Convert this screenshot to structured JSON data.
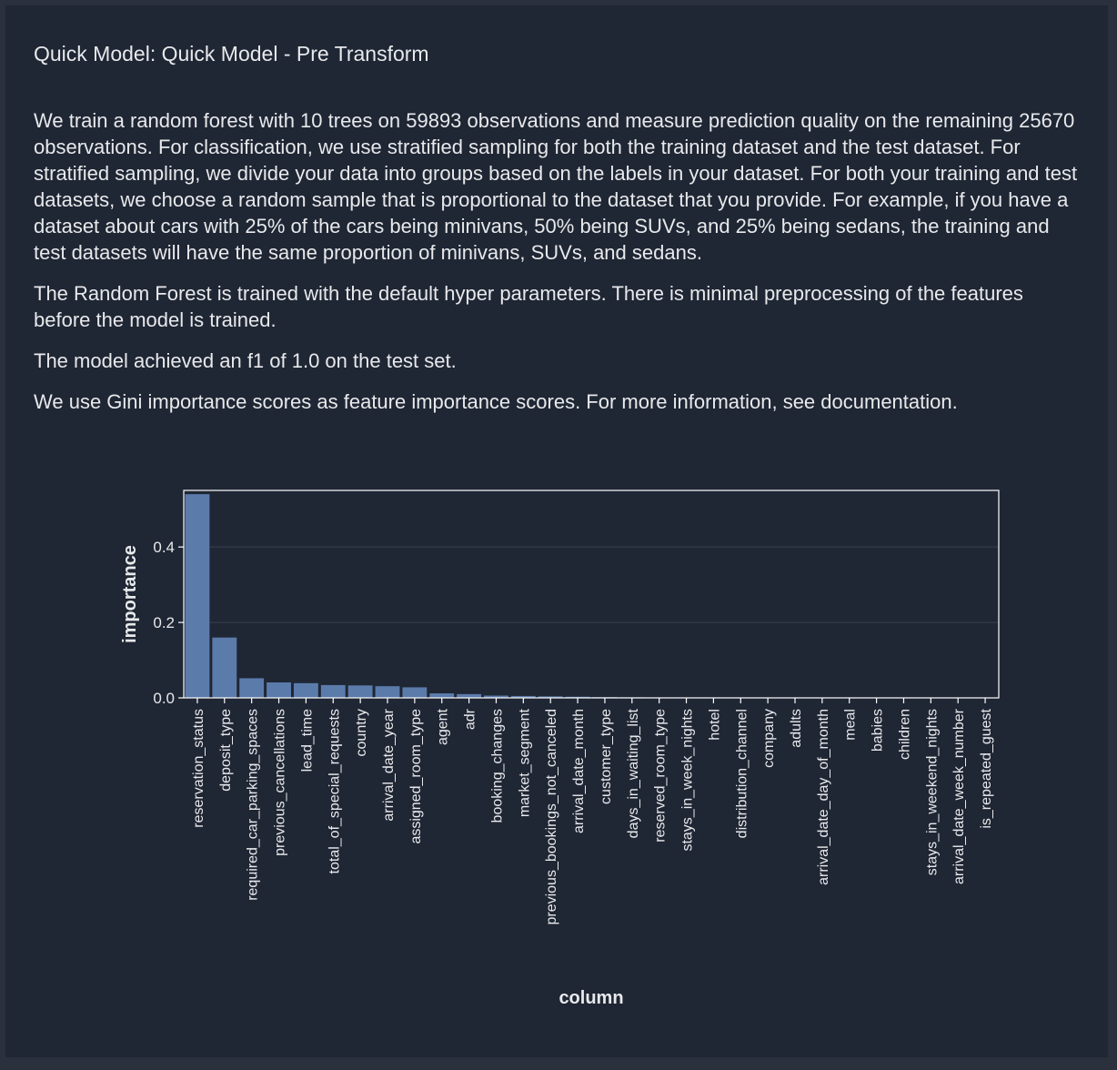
{
  "title": "Quick Model: Quick Model - Pre Transform",
  "paragraphs": [
    "We train a random forest with 10 trees on 59893 observations and measure prediction quality on the remaining 25670 observations. For classification, we use stratified sampling for both the training dataset and the test dataset. For stratified sampling, we divide your data into groups based on the labels in your dataset. For both your training and test datasets, we choose a random sample that is proportional to the dataset that you provide. For example, if you have a dataset about cars with 25% of the cars being minivans, 50% being SUVs, and 25% being sedans, the training and test datasets will have the same proportion of minivans, SUVs, and sedans.",
    "The Random Forest is trained with the default hyper parameters. There is minimal preprocessing of the features before the model is trained.",
    "The model achieved an f1 of 1.0 on the test set.",
    "We use Gini importance scores as feature importance scores. For more information, see documentation."
  ],
  "colors": {
    "background": "#1f2634",
    "frame": "#2a313d",
    "text": "#e8e9eb",
    "bar": "#5b7bab",
    "axis": "#ffffff",
    "grid": "#37404f"
  },
  "chart_data": {
    "type": "bar",
    "xlabel": "column",
    "ylabel": "importance",
    "ylim": [
      0,
      0.55
    ],
    "yticks": [
      0.0,
      0.2,
      0.4
    ],
    "ytick_labels": [
      "0.0",
      "0.2",
      "0.4"
    ],
    "grid": true,
    "categories": [
      "reservation_status",
      "deposit_type",
      "required_car_parking_spaces",
      "previous_cancellations",
      "lead_time",
      "total_of_special_requests",
      "country",
      "arrival_date_year",
      "assigned_room_type",
      "agent",
      "adr",
      "booking_changes",
      "market_segment",
      "previous_bookings_not_canceled",
      "arrival_date_month",
      "customer_type",
      "days_in_waiting_list",
      "reserved_room_type",
      "stays_in_week_nights",
      "hotel",
      "distribution_channel",
      "company",
      "adults",
      "arrival_date_day_of_month",
      "meal",
      "babies",
      "children",
      "stays_in_weekend_nights",
      "arrival_date_week_number",
      "is_repeated_guest"
    ],
    "values": [
      0.54,
      0.16,
      0.052,
      0.041,
      0.039,
      0.034,
      0.033,
      0.031,
      0.028,
      0.012,
      0.01,
      0.006,
      0.005,
      0.004,
      0.003,
      0.002,
      0.0015,
      0.001,
      0.0008,
      0.0005,
      0.0004,
      0.0003,
      0.0003,
      0.0002,
      0.0001,
      0.0001,
      0.0001,
      0.0001,
      0.0001,
      0.0
    ]
  }
}
